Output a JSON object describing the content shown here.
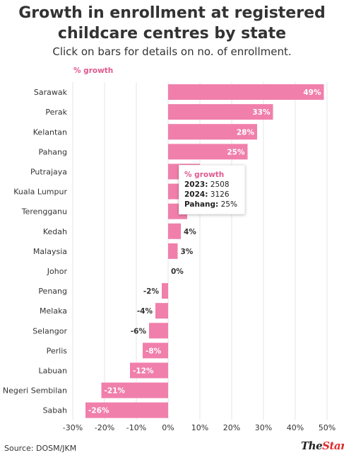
{
  "title": "Growth in enrollment at registered childcare centres by state",
  "subtitle": "Click on bars for details on no. of enrollment.",
  "source": "Source: DOSM/JKM",
  "logo": {
    "the": "The",
    "star": "Star"
  },
  "colors": {
    "bar": "#f07fab",
    "accent": "#e0588f",
    "grid": "#e6e6e6",
    "logo_red": "#e02b2b"
  },
  "tooltip": {
    "header": "% growth",
    "row1_label": "2023:",
    "row1_value": "2508",
    "row2_label": "2024:",
    "row2_value": "3126",
    "row3_label": "Pahang:",
    "row3_value": "25%"
  },
  "chart_data": {
    "type": "bar",
    "orientation": "horizontal",
    "title": "Growth in enrollment at registered childcare centres by state",
    "subtitle": "Click on bars for details on no. of enrollment.",
    "xlabel": "% growth",
    "xlim": [
      -30,
      50
    ],
    "ticks": [
      -30,
      -20,
      -10,
      0,
      10,
      20,
      30,
      40,
      50
    ],
    "tick_labels": [
      "-30%",
      "-20%",
      "-10%",
      "0%",
      "10%",
      "20%",
      "30%",
      "40%",
      "50%"
    ],
    "grid": true,
    "categories": [
      "Sarawak",
      "Perak",
      "Kelantan",
      "Pahang",
      "Putrajaya",
      "Kuala Lumpur",
      "Terengganu",
      "Kedah",
      "Malaysia",
      "Johor",
      "Penang",
      "Melaka",
      "Selangor",
      "Perlis",
      "Labuan",
      "Negeri Sembilan",
      "Sabah"
    ],
    "values": [
      49,
      33,
      28,
      25,
      10,
      8,
      6,
      4,
      3,
      0,
      -2,
      -4,
      -6,
      -8,
      -12,
      -21,
      -26
    ],
    "value_labels": [
      "49%",
      "33%",
      "28%",
      "25%",
      "",
      "",
      "6%",
      "4%",
      "3%",
      "0%",
      "-2%",
      "-4%",
      "-6%",
      "-8%",
      "-12%",
      "-21%",
      "-26%"
    ]
  }
}
